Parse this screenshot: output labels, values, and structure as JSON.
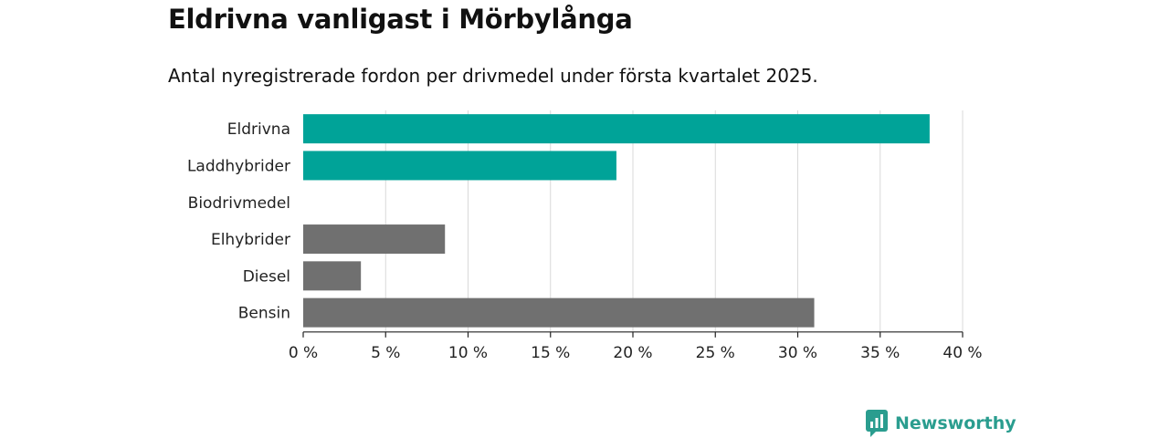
{
  "title": "Eldrivna vanligast i Mörbylånga",
  "subtitle": "Antal nyregistrerade fordon per drivmedel under första kvartalet 2025.",
  "brand": {
    "name": "Newsworthy",
    "icon": "newsworthy-logo-icon"
  },
  "colors": {
    "highlight": "#00a398",
    "default": "#707070",
    "grid": "#d9d9d9",
    "axis": "#222222"
  },
  "chart_data": {
    "type": "bar",
    "orientation": "horizontal",
    "categories": [
      "Eldrivna",
      "Laddhybrider",
      "Biodrivmedel",
      "Elhybrider",
      "Diesel",
      "Bensin"
    ],
    "values": [
      38.0,
      19.0,
      0,
      8.6,
      3.5,
      31.0
    ],
    "highlight": [
      true,
      true,
      true,
      false,
      false,
      false
    ],
    "xlim": [
      0,
      40
    ],
    "xticks": [
      0,
      5,
      10,
      15,
      20,
      25,
      30,
      35,
      40
    ],
    "xtick_labels": [
      "0 %",
      "5 %",
      "10 %",
      "15 %",
      "20 %",
      "25 %",
      "30 %",
      "35 %",
      "40 %"
    ],
    "xlabel": "",
    "ylabel": "",
    "grid": true
  }
}
